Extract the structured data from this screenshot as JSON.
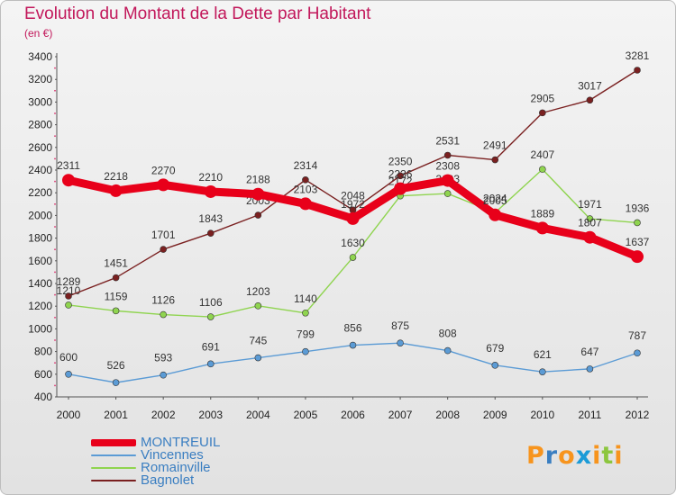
{
  "chart_data": {
    "type": "line",
    "title": "Evolution du Montant de la Dette par Habitant",
    "subtitle": "(en €)",
    "xlabel": "",
    "ylabel": "",
    "ylim": [
      400,
      3400
    ],
    "yticks": [
      400,
      600,
      800,
      1000,
      1200,
      1400,
      1600,
      1800,
      2000,
      2200,
      2400,
      2600,
      2800,
      3000,
      3200,
      3400
    ],
    "categories": [
      "2000",
      "2001",
      "2002",
      "2003",
      "2004",
      "2005",
      "2006",
      "2007",
      "2008",
      "2009",
      "2010",
      "2011",
      "2012"
    ],
    "grid": false,
    "legend_position": "bottom-left",
    "series": [
      {
        "name": "MONTREUIL",
        "color": "#e8001a",
        "values": [
          2311,
          2218,
          2270,
          2210,
          2188,
          2103,
          1972,
          2236,
          2308,
          2005,
          1889,
          1807,
          1637
        ]
      },
      {
        "name": "Vincennes",
        "color": "#5b9bd5",
        "values": [
          600,
          526,
          593,
          691,
          745,
          799,
          856,
          875,
          808,
          679,
          621,
          647,
          787
        ]
      },
      {
        "name": "Romainville",
        "color": "#8fd44f",
        "values": [
          1210,
          1159,
          1126,
          1106,
          1203,
          1140,
          1630,
          2172,
          2193,
          2024,
          2407,
          1971,
          1936
        ]
      },
      {
        "name": "Bagnolet",
        "color": "#7a2020",
        "values": [
          1289,
          1451,
          1701,
          1843,
          2003,
          2314,
          2048,
          2350,
          2531,
          2491,
          2905,
          3017,
          3281
        ]
      }
    ]
  },
  "logo": {
    "letters": [
      "P",
      "r",
      "o",
      "x",
      "i",
      "t",
      "i"
    ],
    "colors": [
      "#f7941d",
      "#3a7ec1",
      "#f7941d",
      "#1b9bd7",
      "#f7941d",
      "#8cc63f",
      "#f7941d"
    ]
  }
}
